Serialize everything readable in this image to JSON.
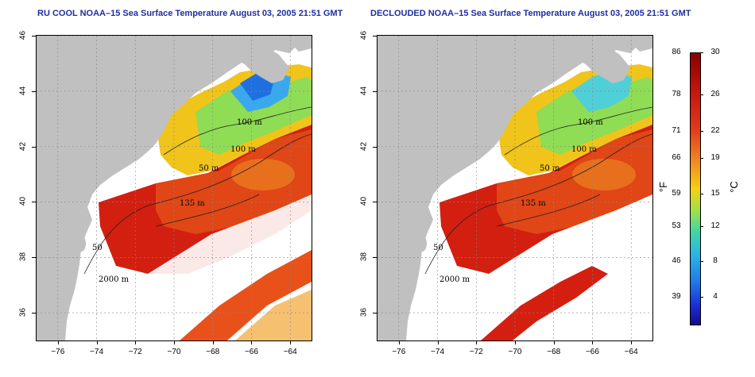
{
  "panels": [
    {
      "title": "RU COOL NOAA–15 Sea Surface Temperature August 03, 2005 21:51 GMT",
      "clouded": true
    },
    {
      "title": "DECLOUDED NOAA–15 Sea Surface Temperature August 03, 2005 21:51 GMT",
      "clouded": false
    }
  ],
  "axes": {
    "x_ticks": [
      "−76",
      "−74",
      "−72",
      "−70",
      "−68",
      "−66",
      "−64"
    ],
    "y_ticks": [
      "36",
      "38",
      "40",
      "42",
      "44",
      "46"
    ],
    "xlim": [
      -77.1,
      -62.9
    ],
    "ylim": [
      35,
      46
    ]
  },
  "contour_labels": [
    "100 m",
    "100 m",
    "50 m",
    "135 m",
    "50",
    "2000 m"
  ],
  "colorbar": {
    "fahrenheit_ticks": [
      "86",
      "78",
      "71",
      "66",
      "59",
      "53",
      "46",
      "39"
    ],
    "celsius_ticks": [
      "30",
      "26",
      "22",
      "19",
      "15",
      "12",
      "8",
      "4"
    ],
    "fahrenheit_unit": "°F",
    "celsius_unit": "°C"
  },
  "colors": {
    "land": "#c0c0c0",
    "warm": "#d8200f",
    "cool": "#1f6fe0",
    "title": "#1f2fa0"
  }
}
